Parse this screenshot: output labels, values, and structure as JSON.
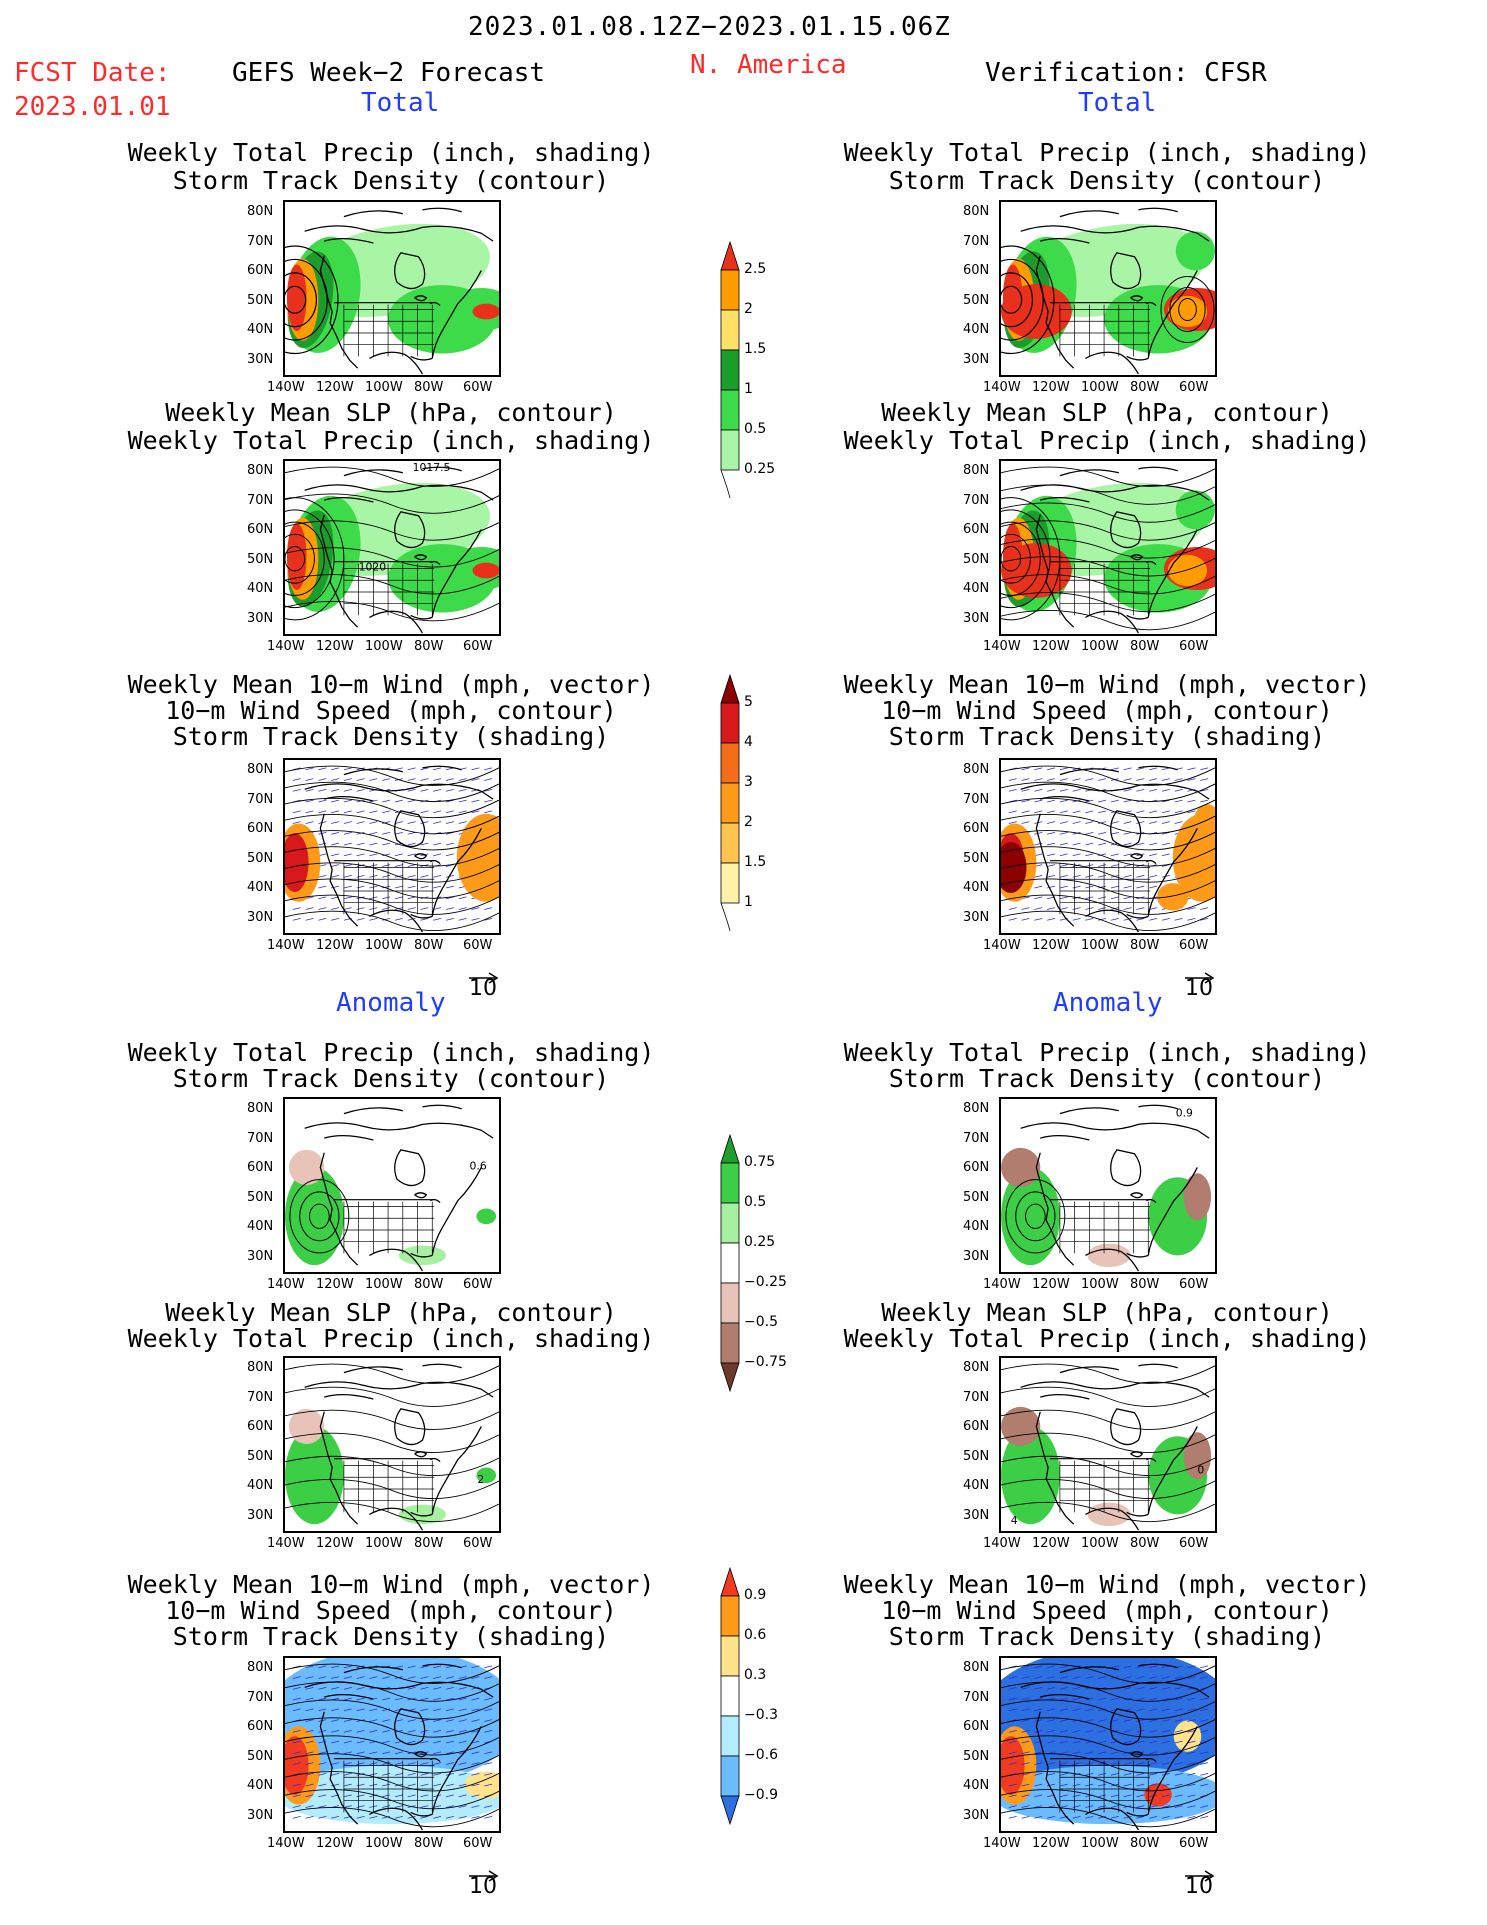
{
  "header": {
    "period": "2023.01.08.12Z−2023.01.15.06Z",
    "fcst_label": "FCST Date:",
    "fcst_date": "2023.01.01",
    "model": "GEFS Week−2 Forecast",
    "region": "N. America",
    "verification": "Verification: CFSR"
  },
  "sections": {
    "total": "Total",
    "anomaly": "Anomaly"
  },
  "titles": {
    "precip_track": [
      "Weekly Total Precip (inch, shading)",
      "Storm Track Density (contour)"
    ],
    "slp_precip": [
      "Weekly Mean SLP (hPa, contour)",
      "Weekly Total Precip (inch, shading)"
    ],
    "wind_track": [
      "Weekly Mean 10−m Wind (mph, vector)",
      "10−m Wind Speed (mph, contour)",
      "Storm Track Density (shading)"
    ]
  },
  "axes": {
    "lat_labels": [
      "80N",
      "70N",
      "60N",
      "50N",
      "40N",
      "30N"
    ],
    "lon_labels": [
      "140W",
      "120W",
      "100W",
      "80W",
      "60W"
    ]
  },
  "contour_labels": {
    "slp_fcst_a": "1017.5",
    "slp_fcst_b": "1020",
    "anom_track_fcst": "0.6",
    "anom_track_ver": "0.9",
    "anom_slp_fcst": "2",
    "anom_slp_ver_a": "0",
    "anom_slp_ver_b": "4"
  },
  "vector_ref": "10",
  "colorbars": {
    "precip_total": {
      "labels": [
        "2.5",
        "2",
        "1.5",
        "1",
        "0.5",
        "0.25"
      ],
      "colors": [
        "#e8311b",
        "#ff9d00",
        "#ffe066",
        "#1c9c2a",
        "#3ddb4a",
        "#a9f5a6"
      ]
    },
    "track_total": {
      "labels": [
        "5",
        "4",
        "3",
        "2",
        "1.5",
        "1"
      ],
      "colors": [
        "#8b0000",
        "#d7191c",
        "#f46d1b",
        "#fd9a18",
        "#fec44f",
        "#fff2a8"
      ]
    },
    "precip_anom": {
      "labels": [
        "0.75",
        "0.5",
        "0.25",
        "−0.25",
        "−0.5",
        "−0.75"
      ],
      "colors": [
        "#1f9e2b",
        "#3ccf46",
        "#a6f0a0",
        "#ffffff",
        "#e8c4b8",
        "#b07d6e",
        "#6b3a2c"
      ]
    },
    "track_anom": {
      "labels": [
        "0.9",
        "0.6",
        "0.3",
        "−0.3",
        "−0.6",
        "−0.9"
      ],
      "colors": [
        "#f03b20",
        "#fd9a18",
        "#fee38b",
        "#ffffff",
        "#b3ecff",
        "#6bbcff",
        "#2b6fe0"
      ]
    }
  }
}
